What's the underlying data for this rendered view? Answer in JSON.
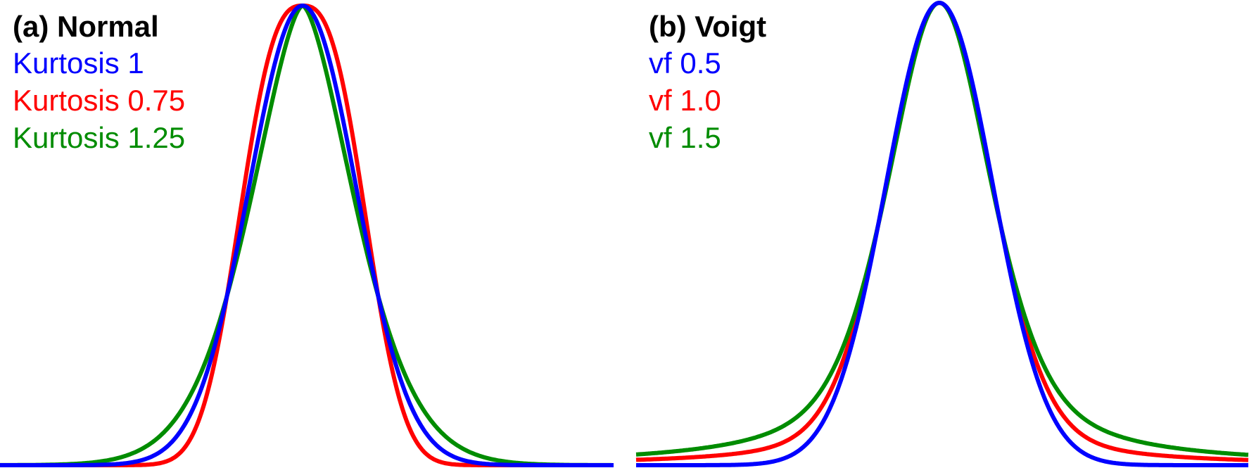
{
  "chart_data": [
    {
      "type": "line",
      "title": "(a) Normal",
      "xlim": [
        -4.4,
        4.4
      ],
      "ylim": [
        0,
        1
      ],
      "grid": false,
      "legend_placement": "top-left",
      "series": [
        {
          "name": "Kurtosis 1",
          "color": "#0000ff",
          "kurtosis": 1
        },
        {
          "name": "Kurtosis 0.75",
          "color": "#ff0000",
          "kurtosis": 0.75
        },
        {
          "name": "Kurtosis 1.25",
          "color": "#008c00",
          "kurtosis": 1.25
        }
      ]
    },
    {
      "type": "line",
      "title": "(b) Voigt",
      "xlim": [
        -4.4,
        4.4
      ],
      "ylim": [
        0,
        1
      ],
      "grid": false,
      "legend_placement": "top-left",
      "series": [
        {
          "name": "vf 0.5",
          "color": "#0000ff",
          "vf": 0.5
        },
        {
          "name": "vf 1.0",
          "color": "#ff0000",
          "vf": 1.0
        },
        {
          "name": "vf 1.5",
          "color": "#008c00",
          "vf": 1.5
        }
      ]
    }
  ]
}
